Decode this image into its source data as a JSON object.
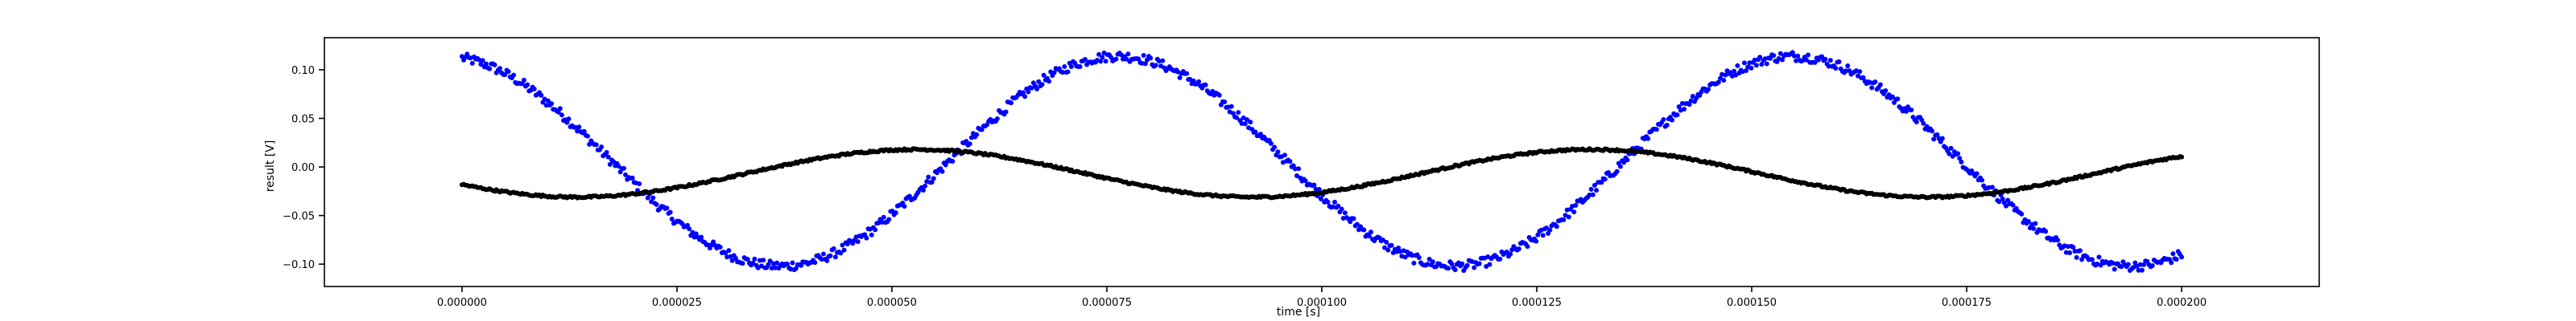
{
  "chart_data": {
    "type": "scatter",
    "title": "",
    "xlabel": "time [s]",
    "ylabel": "result [V]",
    "xlim": [
      -1.6e-05,
      0.000216
    ],
    "ylim": [
      -0.123,
      0.133
    ],
    "x_ticks": [
      0.0,
      2.5e-05,
      5e-05,
      7.5e-05,
      0.0001,
      0.000125,
      0.00015,
      0.000175,
      0.0002
    ],
    "x_tick_labels": [
      "0.000000",
      "0.000025",
      "0.000050",
      "0.000075",
      "0.000100",
      "0.000125",
      "0.000150",
      "0.000175",
      "0.000200"
    ],
    "y_ticks": [
      -0.1,
      -0.05,
      0.0,
      0.05,
      0.1
    ],
    "y_tick_labels": [
      "−0.10",
      "−0.05",
      "0.00",
      "0.05",
      "0.10"
    ],
    "grid": false,
    "legend": "none",
    "x_range": [
      0.0,
      0.0002
    ],
    "num_points": 1000,
    "series": [
      {
        "color": "#0000ff",
        "marker": "dot",
        "model": "sine",
        "amplitude": 0.108,
        "period": 7.85e-05,
        "phase": 1.75,
        "offset": 0.006,
        "noise": 0.005
      },
      {
        "color": "#000000",
        "marker": "dot",
        "model": "sine",
        "amplitude": 0.0245,
        "period": 7.85e-05,
        "phase": -2.65,
        "offset": -0.0065,
        "noise": 0.001
      }
    ]
  }
}
